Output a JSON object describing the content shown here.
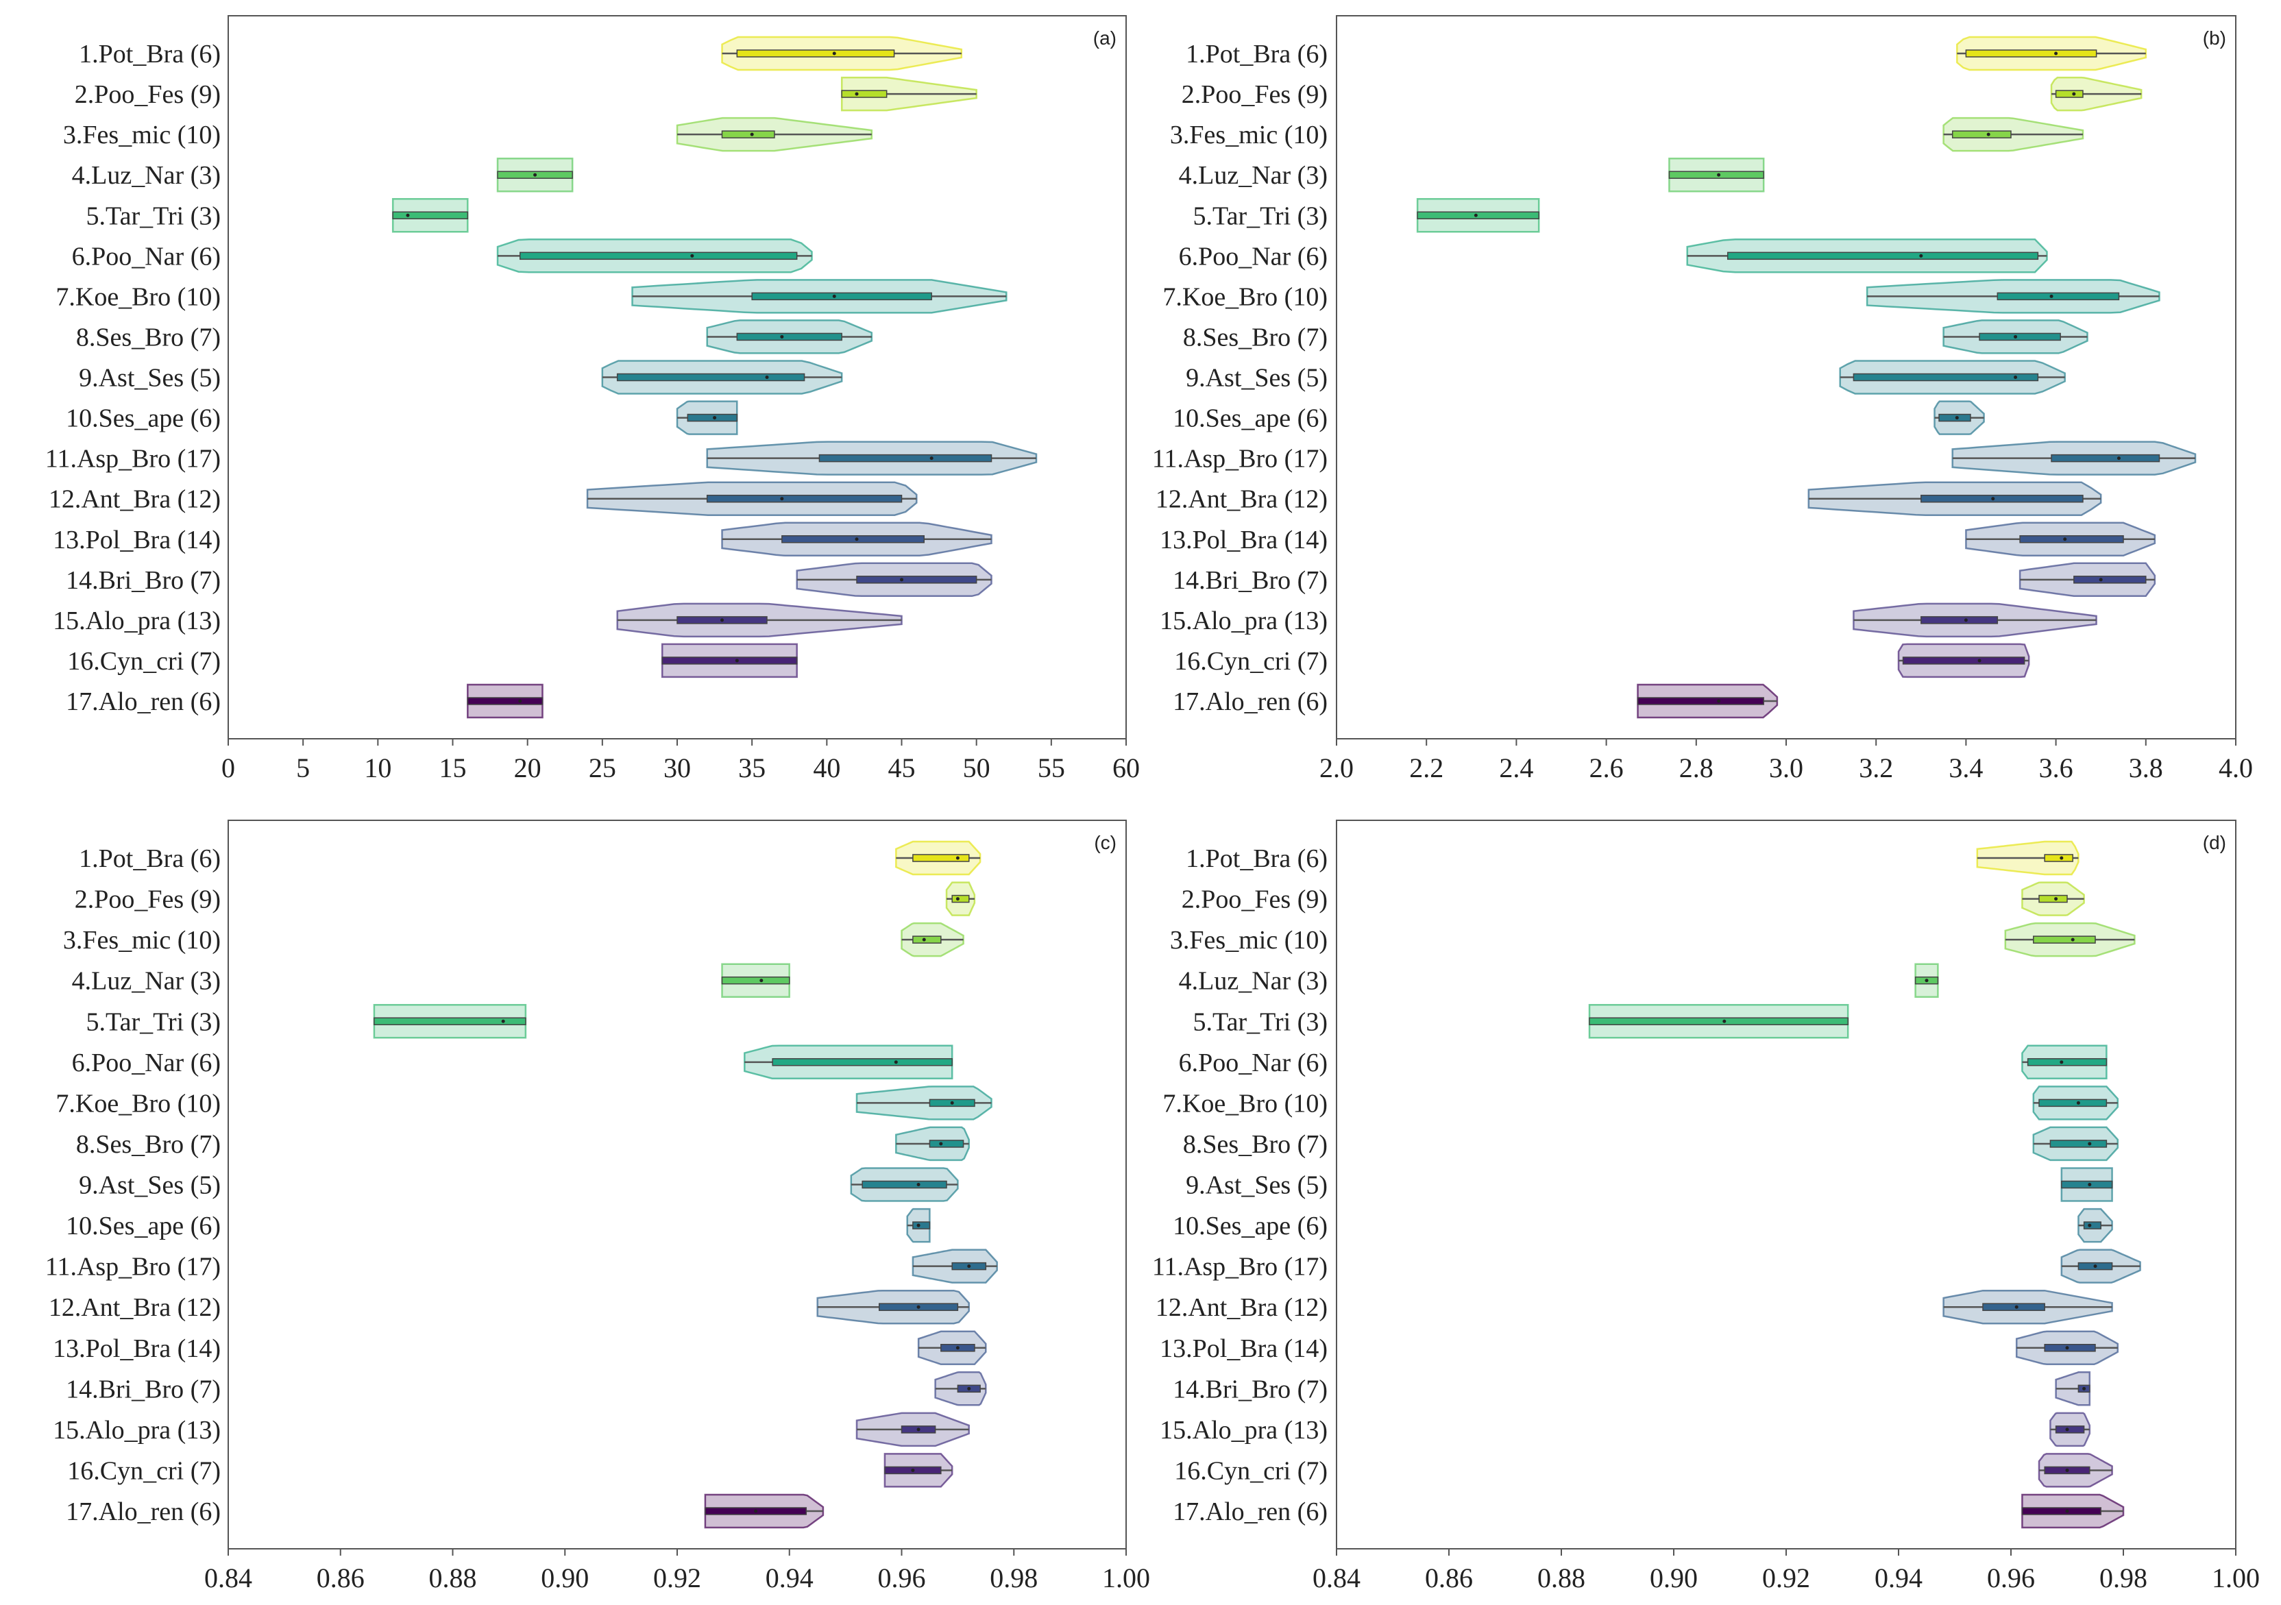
{
  "chart_data": {
    "type": "violin",
    "categories": [
      "1.Pot_Bra (6)",
      "2.Poo_Fes (9)",
      "3.Fes_mic (10)",
      "4.Luz_Nar (3)",
      "5.Tar_Tri (3)",
      "6.Poo_Nar (6)",
      "7.Koe_Bro (10)",
      "8.Ses_Bro (7)",
      "9.Ast_Ses (5)",
      "10.Ses_ape (6)",
      "11.Asp_Bro (17)",
      "12.Ant_Bra (12)",
      "13.Pol_Bra (14)",
      "14.Bri_Bro (7)",
      "15.Alo_pra (13)",
      "16.Cyn_cri (7)",
      "17.Alo_ren (6)"
    ],
    "colors": [
      "#e5e419",
      "#b5de2b",
      "#86d549",
      "#5ec962",
      "#3bbb75",
      "#22a884",
      "#1f9a8a",
      "#21918c",
      "#26838f",
      "#2a788e",
      "#2e6d8e",
      "#33638d",
      "#39568c",
      "#3f4889",
      "#453781",
      "#482475",
      "#440154"
    ],
    "value_format": "[min, q1, median, q3, max]",
    "panels": [
      {
        "tag": "(a)",
        "xlim": [
          0,
          60
        ],
        "xticks": [
          "0",
          "5",
          "10",
          "15",
          "20",
          "25",
          "30",
          "35",
          "40",
          "45",
          "50",
          "55",
          "60"
        ],
        "xtick_values": [
          0,
          5,
          10,
          15,
          20,
          25,
          30,
          35,
          40,
          45,
          50,
          55,
          60
        ],
        "stats": [
          [
            33,
            34,
            40.5,
            44.5,
            49
          ],
          [
            41,
            41,
            42,
            44,
            50
          ],
          [
            30,
            33,
            35,
            36.5,
            43
          ],
          [
            18,
            18,
            20.5,
            23,
            23
          ],
          [
            11,
            11,
            12,
            16,
            16
          ],
          [
            18,
            19.5,
            31,
            38,
            39
          ],
          [
            27,
            35,
            40.5,
            47,
            52
          ],
          [
            32,
            34,
            37,
            41,
            43
          ],
          [
            25,
            26,
            36,
            38.5,
            41
          ],
          [
            30,
            30.7,
            32.5,
            34,
            34
          ],
          [
            32,
            39.5,
            47,
            51,
            54
          ],
          [
            24,
            32,
            37,
            45,
            46
          ],
          [
            33,
            37,
            42,
            46.5,
            51
          ],
          [
            38,
            42,
            45,
            50,
            51
          ],
          [
            26,
            30,
            33,
            36,
            45
          ],
          [
            29,
            29,
            34,
            38,
            38
          ],
          [
            16,
            16,
            19.5,
            21,
            21
          ]
        ]
      },
      {
        "tag": "(b)",
        "xlim": [
          2.0,
          4.0
        ],
        "xticks": [
          "2.0",
          "2.2",
          "2.4",
          "2.6",
          "2.8",
          "3.0",
          "3.2",
          "3.4",
          "3.6",
          "3.8",
          "4.0"
        ],
        "xtick_values": [
          2.0,
          2.2,
          2.4,
          2.6,
          2.8,
          3.0,
          3.2,
          3.4,
          3.6,
          3.8,
          4.0
        ],
        "stats": [
          [
            3.38,
            3.4,
            3.6,
            3.69,
            3.8
          ],
          [
            3.59,
            3.6,
            3.64,
            3.66,
            3.79
          ],
          [
            3.35,
            3.37,
            3.45,
            3.5,
            3.66
          ],
          [
            2.74,
            2.74,
            2.85,
            2.95,
            2.95
          ],
          [
            2.18,
            2.18,
            2.31,
            2.45,
            2.45
          ],
          [
            2.78,
            2.87,
            3.3,
            3.56,
            3.58
          ],
          [
            3.18,
            3.47,
            3.59,
            3.74,
            3.83
          ],
          [
            3.35,
            3.43,
            3.51,
            3.61,
            3.67
          ],
          [
            3.12,
            3.15,
            3.51,
            3.56,
            3.62
          ],
          [
            3.33,
            3.34,
            3.38,
            3.41,
            3.44
          ],
          [
            3.37,
            3.59,
            3.74,
            3.83,
            3.91
          ],
          [
            3.05,
            3.3,
            3.46,
            3.66,
            3.7
          ],
          [
            3.4,
            3.52,
            3.62,
            3.75,
            3.82
          ],
          [
            3.52,
            3.64,
            3.7,
            3.8,
            3.82
          ],
          [
            3.15,
            3.3,
            3.4,
            3.47,
            3.69
          ],
          [
            3.25,
            3.26,
            3.43,
            3.53,
            3.54
          ],
          [
            2.67,
            2.67,
            2.85,
            2.95,
            2.98
          ]
        ]
      },
      {
        "tag": "(c)",
        "xlim": [
          0.84,
          1.0
        ],
        "xticks": [
          "0.84",
          "0.86",
          "0.88",
          "0.90",
          "0.92",
          "0.94",
          "0.96",
          "0.98",
          "1.00"
        ],
        "xtick_values": [
          0.84,
          0.86,
          0.88,
          0.9,
          0.92,
          0.94,
          0.96,
          0.98,
          1.0
        ],
        "stats": [
          [
            0.959,
            0.962,
            0.97,
            0.972,
            0.974
          ],
          [
            0.968,
            0.969,
            0.97,
            0.972,
            0.973
          ],
          [
            0.96,
            0.962,
            0.964,
            0.967,
            0.971
          ],
          [
            0.928,
            0.928,
            0.935,
            0.94,
            0.94
          ],
          [
            0.866,
            0.866,
            0.889,
            0.893,
            0.893
          ],
          [
            0.932,
            0.937,
            0.959,
            0.969,
            0.969
          ],
          [
            0.952,
            0.965,
            0.969,
            0.973,
            0.976
          ],
          [
            0.959,
            0.965,
            0.967,
            0.971,
            0.972
          ],
          [
            0.951,
            0.953,
            0.963,
            0.968,
            0.97
          ],
          [
            0.961,
            0.962,
            0.963,
            0.965,
            0.965
          ],
          [
            0.962,
            0.969,
            0.972,
            0.975,
            0.977
          ],
          [
            0.945,
            0.956,
            0.963,
            0.97,
            0.972
          ],
          [
            0.963,
            0.967,
            0.97,
            0.973,
            0.975
          ],
          [
            0.966,
            0.97,
            0.972,
            0.974,
            0.975
          ],
          [
            0.952,
            0.96,
            0.963,
            0.966,
            0.972
          ],
          [
            0.957,
            0.957,
            0.962,
            0.967,
            0.969
          ],
          [
            0.925,
            0.925,
            0.934,
            0.943,
            0.946
          ]
        ]
      },
      {
        "tag": "(d)",
        "xlim": [
          0.84,
          1.0
        ],
        "xticks": [
          "0.84",
          "0.86",
          "0.88",
          "0.90",
          "0.92",
          "0.94",
          "0.96",
          "0.98",
          "1.00"
        ],
        "xtick_values": [
          0.84,
          0.86,
          0.88,
          0.9,
          0.92,
          0.94,
          0.96,
          0.98,
          1.0
        ],
        "stats": [
          [
            0.954,
            0.966,
            0.969,
            0.971,
            0.972
          ],
          [
            0.962,
            0.965,
            0.968,
            0.97,
            0.973
          ],
          [
            0.959,
            0.964,
            0.971,
            0.975,
            0.982
          ],
          [
            0.943,
            0.943,
            0.945,
            0.947,
            0.947
          ],
          [
            0.885,
            0.885,
            0.909,
            0.931,
            0.931
          ],
          [
            0.962,
            0.963,
            0.969,
            0.977,
            0.977
          ],
          [
            0.964,
            0.965,
            0.972,
            0.977,
            0.979
          ],
          [
            0.964,
            0.967,
            0.974,
            0.977,
            0.979
          ],
          [
            0.969,
            0.969,
            0.974,
            0.978,
            0.978
          ],
          [
            0.972,
            0.973,
            0.974,
            0.976,
            0.978
          ],
          [
            0.969,
            0.972,
            0.975,
            0.978,
            0.983
          ],
          [
            0.948,
            0.955,
            0.961,
            0.966,
            0.978
          ],
          [
            0.961,
            0.966,
            0.97,
            0.975,
            0.979
          ],
          [
            0.968,
            0.972,
            0.973,
            0.974,
            0.974
          ],
          [
            0.967,
            0.968,
            0.97,
            0.973,
            0.974
          ],
          [
            0.965,
            0.966,
            0.97,
            0.974,
            0.978
          ],
          [
            0.962,
            0.962,
            0.97,
            0.976,
            0.98
          ]
        ]
      }
    ]
  }
}
